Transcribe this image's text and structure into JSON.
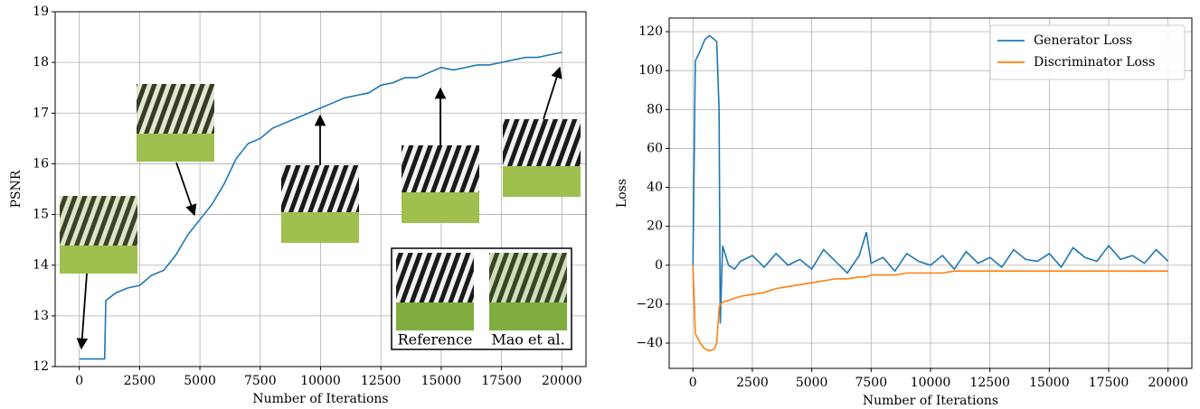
{
  "chart_data": [
    {
      "type": "line",
      "xlabel": "Number of Iterations",
      "ylabel": "PSNR",
      "x": [
        0,
        1050,
        1100,
        1500,
        2000,
        2500,
        3000,
        3500,
        4000,
        4500,
        5000,
        5500,
        6000,
        6500,
        7000,
        7500,
        8000,
        8500,
        9000,
        9500,
        10000,
        10500,
        11000,
        11500,
        12000,
        12500,
        13000,
        13500,
        14000,
        14500,
        15000,
        15500,
        16000,
        16500,
        17000,
        17500,
        18000,
        18500,
        19000,
        19500,
        20000
      ],
      "values": [
        12.15,
        12.15,
        13.3,
        13.45,
        13.55,
        13.6,
        13.8,
        13.9,
        14.2,
        14.6,
        14.9,
        15.2,
        15.6,
        16.1,
        16.4,
        16.5,
        16.7,
        16.8,
        16.9,
        17.0,
        17.1,
        17.2,
        17.3,
        17.35,
        17.4,
        17.55,
        17.6,
        17.7,
        17.7,
        17.8,
        17.9,
        17.85,
        17.9,
        17.95,
        17.95,
        18.0,
        18.05,
        18.1,
        18.1,
        18.15,
        18.2
      ],
      "color": "#1f77b4",
      "xlim": [
        -1000,
        21000
      ],
      "ylim": [
        12,
        19
      ],
      "xticks": [
        0,
        2500,
        5000,
        7500,
        10000,
        12500,
        15000,
        17500,
        20000
      ],
      "yticks": [
        12,
        13,
        14,
        15,
        16,
        17,
        18,
        19
      ],
      "grid": true,
      "annotations": [
        "Reference",
        "Mao et al."
      ]
    },
    {
      "type": "line",
      "xlabel": "Number of Iterations",
      "ylabel": "Loss",
      "x": [
        0,
        100,
        300,
        500,
        700,
        900,
        1000,
        1100,
        1150,
        1250,
        1500,
        1750,
        2000,
        2500,
        3000,
        3500,
        4000,
        4500,
        5000,
        5500,
        6000,
        6500,
        7000,
        7300,
        7500,
        8000,
        8500,
        9000,
        9500,
        10000,
        10500,
        11000,
        11500,
        12000,
        12500,
        13000,
        13500,
        14000,
        14500,
        15000,
        15500,
        16000,
        16500,
        17000,
        17500,
        18000,
        18500,
        19000,
        19500,
        20000
      ],
      "series": [
        {
          "name": "Generator Loss",
          "color": "#1f77b4",
          "values": [
            0,
            105,
            110,
            116,
            118,
            116,
            115,
            80,
            -30,
            10,
            0,
            -2,
            2,
            5,
            -1,
            6,
            0,
            3,
            -2,
            8,
            2,
            -4,
            5,
            17,
            1,
            4,
            -3,
            6,
            2,
            0,
            5,
            -2,
            7,
            1,
            4,
            -1,
            8,
            3,
            2,
            6,
            -1,
            9,
            4,
            2,
            10,
            3,
            5,
            1,
            8,
            2
          ]
        },
        {
          "name": "Discriminator Loss",
          "color": "#ff7f0e",
          "values": [
            0,
            -35,
            -40,
            -43,
            -44,
            -43,
            -40,
            -22,
            -20,
            -19,
            -18,
            -17,
            -16,
            -15,
            -14,
            -12,
            -11,
            -10,
            -9,
            -8,
            -7,
            -7,
            -6,
            -6,
            -5,
            -5,
            -5,
            -4,
            -4,
            -4,
            -4,
            -3,
            -3,
            -3,
            -3,
            -3,
            -3,
            -3,
            -3,
            -3,
            -3,
            -3,
            -3,
            -3,
            -3,
            -3,
            -3,
            -3,
            -3,
            -3
          ]
        }
      ],
      "xlim": [
        -1000,
        21000
      ],
      "ylim": [
        -53,
        127
      ],
      "xticks": [
        0,
        2500,
        5000,
        7500,
        10000,
        12500,
        15000,
        17500,
        20000
      ],
      "yticks": [
        {
          "value": -40,
          "label": "−40"
        },
        {
          "value": -20,
          "label": "−20"
        },
        0,
        20,
        40,
        60,
        80,
        100,
        120
      ],
      "grid": true,
      "legend": "upper right"
    }
  ]
}
